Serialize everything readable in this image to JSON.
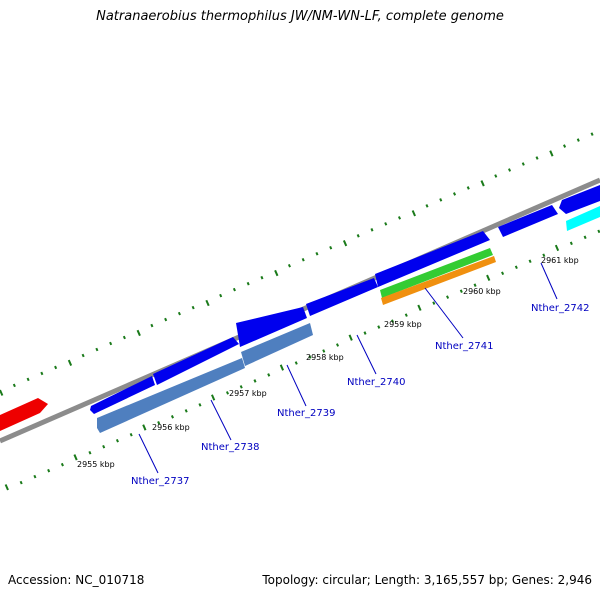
{
  "title": "Natranaerobius thermophilus JW/NM-WN-LF, complete genome",
  "footer": {
    "accession": "Accession: NC_010718",
    "summary": "Topology: circular; Length: 3,165,557 bp; Genes: 2,946"
  },
  "colors": {
    "backbone": "#8c8c8c",
    "forward_cds": "#0000ee",
    "reverse_cds": "#4f7fbf",
    "tick": "#1a7a1a",
    "gene_label": "#0000c0",
    "highlight_green": "#33cc33",
    "highlight_orange": "#f0900f",
    "highlight_cyan": "#00ffff",
    "highlight_red": "#ee0000"
  },
  "ruler_labels": [
    "2955 kbp",
    "2956 kbp",
    "2957 kbp",
    "2958 kbp",
    "2959 kbp",
    "2960 kbp",
    "2961 kbp"
  ],
  "gene_labels": [
    "Nther_2737",
    "Nther_2738",
    "Nther_2739",
    "Nther_2740",
    "Nther_2741",
    "Nther_2742"
  ]
}
